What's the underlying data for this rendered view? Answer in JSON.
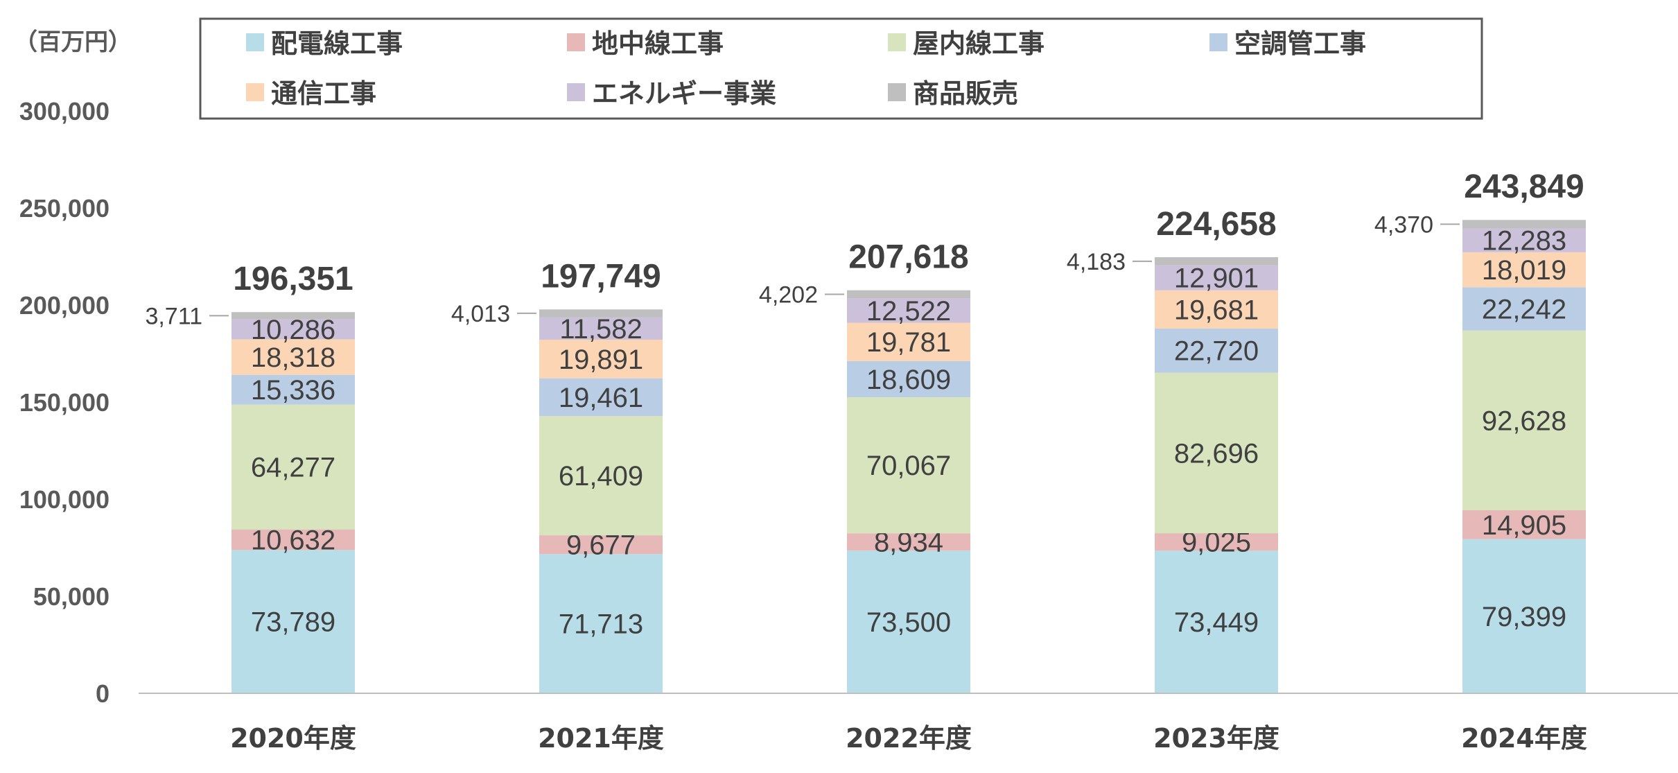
{
  "unit_label": "（百万円）",
  "colors": {
    "配電線工事": "#b6dde8",
    "地中線工事": "#e6b9b8",
    "屋内線工事": "#d7e4bd",
    "空調管工事": "#b9cde5",
    "通信工事": "#fcd5b5",
    "エネルギー事業": "#ccc1da",
    "商品販売": "#bfbfbf"
  },
  "chart_data": {
    "type": "bar",
    "stacked": true,
    "categories": [
      "2020年度",
      "2021年度",
      "2022年度",
      "2023年度",
      "2024年度"
    ],
    "series": [
      {
        "name": "配電線工事",
        "values": [
          73789,
          71713,
          73500,
          73449,
          79399
        ]
      },
      {
        "name": "地中線工事",
        "values": [
          10632,
          9677,
          8934,
          9025,
          14905
        ]
      },
      {
        "name": "屋内線工事",
        "values": [
          64277,
          61409,
          70067,
          82696,
          92628
        ]
      },
      {
        "name": "空調管工事",
        "values": [
          15336,
          19461,
          18609,
          22720,
          22242
        ]
      },
      {
        "name": "通信工事",
        "values": [
          18318,
          19891,
          19781,
          19681,
          18019
        ]
      },
      {
        "name": "エネルギー事業",
        "values": [
          10286,
          11582,
          12522,
          12901,
          12283
        ]
      },
      {
        "name": "商品販売",
        "values": [
          3711,
          4013,
          4202,
          4183,
          4370
        ]
      }
    ],
    "totals": [
      196351,
      197749,
      207618,
      224658,
      243849
    ],
    "ylim": [
      0,
      300000
    ],
    "yticks": [
      0,
      50000,
      100000,
      150000,
      200000,
      250000,
      300000
    ],
    "legend_position": "top",
    "grid": false
  }
}
